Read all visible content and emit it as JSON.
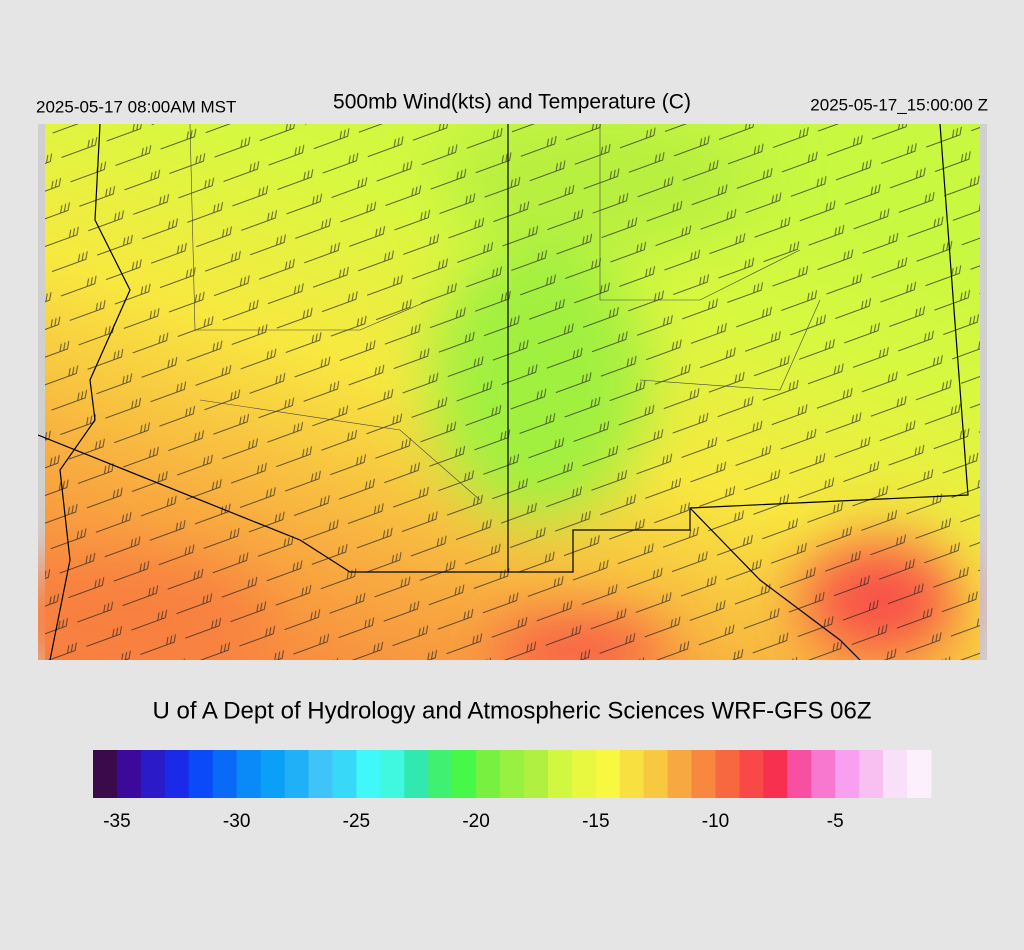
{
  "header": {
    "left": "2025-05-17 08:00AM MST",
    "title": "500mb Wind(kts) and Temperature (C)",
    "right": "2025-05-17_15:00:00 Z"
  },
  "footer": {
    "credit": "U of A Dept of Hydrology and Atmospheric Sciences WRF-GFS 06Z"
  },
  "colorbar": {
    "range": [
      -36,
      -1
    ],
    "colors": [
      "#3a0a4a",
      "#3c0a9a",
      "#2a1ac8",
      "#1a2ae8",
      "#0a4af8",
      "#0a6af8",
      "#0a8af8",
      "#0aa0f8",
      "#20b0f8",
      "#40c4f8",
      "#38d8f8",
      "#40f8f8",
      "#40f8e0",
      "#30e8b0",
      "#40f070",
      "#48f848",
      "#78f040",
      "#98f040",
      "#b0f040",
      "#d0f840",
      "#e8f840",
      "#f8f840",
      "#f8e040",
      "#f8c840",
      "#f8a840",
      "#f88840",
      "#f86840",
      "#f84848",
      "#f83050",
      "#f850a0",
      "#f878d0",
      "#f8a0f0",
      "#f8c0f0",
      "#f8e0f8",
      "#fcf0fc"
    ],
    "ticks": [
      -35,
      -30,
      -25,
      -20,
      -15,
      -10,
      -5
    ]
  }
}
